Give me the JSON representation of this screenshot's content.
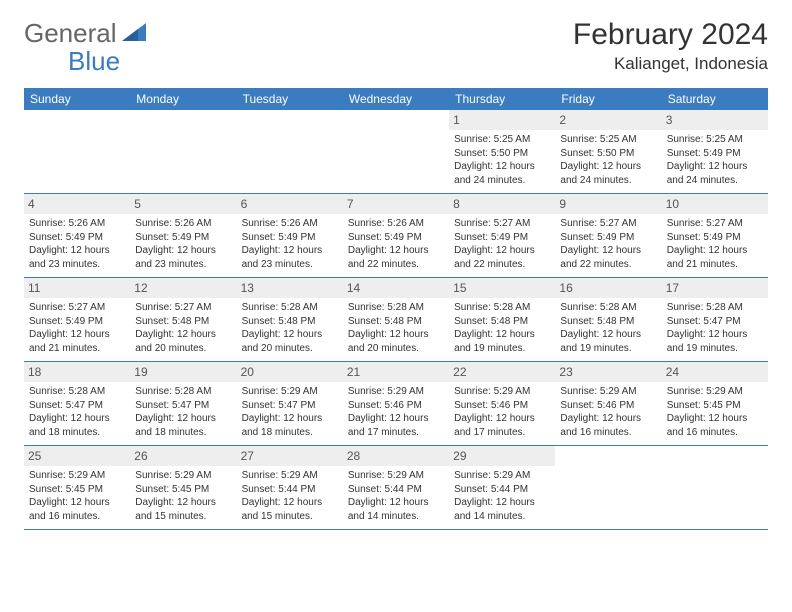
{
  "brand": {
    "part1": "General",
    "part2": "Blue"
  },
  "title": {
    "month": "February 2024",
    "location": "Kalianget, Indonesia"
  },
  "colors": {
    "header_bg": "#3b7bbf",
    "header_text": "#ffffff",
    "daynum_bg": "#eeeeee",
    "border": "#3b7bbf"
  },
  "weekdays": [
    "Sunday",
    "Monday",
    "Tuesday",
    "Wednesday",
    "Thursday",
    "Friday",
    "Saturday"
  ],
  "weeks": [
    [
      {
        "empty": true
      },
      {
        "empty": true
      },
      {
        "empty": true
      },
      {
        "empty": true
      },
      {
        "num": "1",
        "sunrise": "Sunrise: 5:25 AM",
        "sunset": "Sunset: 5:50 PM",
        "daylight": "Daylight: 12 hours and 24 minutes."
      },
      {
        "num": "2",
        "sunrise": "Sunrise: 5:25 AM",
        "sunset": "Sunset: 5:50 PM",
        "daylight": "Daylight: 12 hours and 24 minutes."
      },
      {
        "num": "3",
        "sunrise": "Sunrise: 5:25 AM",
        "sunset": "Sunset: 5:49 PM",
        "daylight": "Daylight: 12 hours and 24 minutes."
      }
    ],
    [
      {
        "num": "4",
        "sunrise": "Sunrise: 5:26 AM",
        "sunset": "Sunset: 5:49 PM",
        "daylight": "Daylight: 12 hours and 23 minutes."
      },
      {
        "num": "5",
        "sunrise": "Sunrise: 5:26 AM",
        "sunset": "Sunset: 5:49 PM",
        "daylight": "Daylight: 12 hours and 23 minutes."
      },
      {
        "num": "6",
        "sunrise": "Sunrise: 5:26 AM",
        "sunset": "Sunset: 5:49 PM",
        "daylight": "Daylight: 12 hours and 23 minutes."
      },
      {
        "num": "7",
        "sunrise": "Sunrise: 5:26 AM",
        "sunset": "Sunset: 5:49 PM",
        "daylight": "Daylight: 12 hours and 22 minutes."
      },
      {
        "num": "8",
        "sunrise": "Sunrise: 5:27 AM",
        "sunset": "Sunset: 5:49 PM",
        "daylight": "Daylight: 12 hours and 22 minutes."
      },
      {
        "num": "9",
        "sunrise": "Sunrise: 5:27 AM",
        "sunset": "Sunset: 5:49 PM",
        "daylight": "Daylight: 12 hours and 22 minutes."
      },
      {
        "num": "10",
        "sunrise": "Sunrise: 5:27 AM",
        "sunset": "Sunset: 5:49 PM",
        "daylight": "Daylight: 12 hours and 21 minutes."
      }
    ],
    [
      {
        "num": "11",
        "sunrise": "Sunrise: 5:27 AM",
        "sunset": "Sunset: 5:49 PM",
        "daylight": "Daylight: 12 hours and 21 minutes."
      },
      {
        "num": "12",
        "sunrise": "Sunrise: 5:27 AM",
        "sunset": "Sunset: 5:48 PM",
        "daylight": "Daylight: 12 hours and 20 minutes."
      },
      {
        "num": "13",
        "sunrise": "Sunrise: 5:28 AM",
        "sunset": "Sunset: 5:48 PM",
        "daylight": "Daylight: 12 hours and 20 minutes."
      },
      {
        "num": "14",
        "sunrise": "Sunrise: 5:28 AM",
        "sunset": "Sunset: 5:48 PM",
        "daylight": "Daylight: 12 hours and 20 minutes."
      },
      {
        "num": "15",
        "sunrise": "Sunrise: 5:28 AM",
        "sunset": "Sunset: 5:48 PM",
        "daylight": "Daylight: 12 hours and 19 minutes."
      },
      {
        "num": "16",
        "sunrise": "Sunrise: 5:28 AM",
        "sunset": "Sunset: 5:48 PM",
        "daylight": "Daylight: 12 hours and 19 minutes."
      },
      {
        "num": "17",
        "sunrise": "Sunrise: 5:28 AM",
        "sunset": "Sunset: 5:47 PM",
        "daylight": "Daylight: 12 hours and 19 minutes."
      }
    ],
    [
      {
        "num": "18",
        "sunrise": "Sunrise: 5:28 AM",
        "sunset": "Sunset: 5:47 PM",
        "daylight": "Daylight: 12 hours and 18 minutes."
      },
      {
        "num": "19",
        "sunrise": "Sunrise: 5:28 AM",
        "sunset": "Sunset: 5:47 PM",
        "daylight": "Daylight: 12 hours and 18 minutes."
      },
      {
        "num": "20",
        "sunrise": "Sunrise: 5:29 AM",
        "sunset": "Sunset: 5:47 PM",
        "daylight": "Daylight: 12 hours and 18 minutes."
      },
      {
        "num": "21",
        "sunrise": "Sunrise: 5:29 AM",
        "sunset": "Sunset: 5:46 PM",
        "daylight": "Daylight: 12 hours and 17 minutes."
      },
      {
        "num": "22",
        "sunrise": "Sunrise: 5:29 AM",
        "sunset": "Sunset: 5:46 PM",
        "daylight": "Daylight: 12 hours and 17 minutes."
      },
      {
        "num": "23",
        "sunrise": "Sunrise: 5:29 AM",
        "sunset": "Sunset: 5:46 PM",
        "daylight": "Daylight: 12 hours and 16 minutes."
      },
      {
        "num": "24",
        "sunrise": "Sunrise: 5:29 AM",
        "sunset": "Sunset: 5:45 PM",
        "daylight": "Daylight: 12 hours and 16 minutes."
      }
    ],
    [
      {
        "num": "25",
        "sunrise": "Sunrise: 5:29 AM",
        "sunset": "Sunset: 5:45 PM",
        "daylight": "Daylight: 12 hours and 16 minutes."
      },
      {
        "num": "26",
        "sunrise": "Sunrise: 5:29 AM",
        "sunset": "Sunset: 5:45 PM",
        "daylight": "Daylight: 12 hours and 15 minutes."
      },
      {
        "num": "27",
        "sunrise": "Sunrise: 5:29 AM",
        "sunset": "Sunset: 5:44 PM",
        "daylight": "Daylight: 12 hours and 15 minutes."
      },
      {
        "num": "28",
        "sunrise": "Sunrise: 5:29 AM",
        "sunset": "Sunset: 5:44 PM",
        "daylight": "Daylight: 12 hours and 14 minutes."
      },
      {
        "num": "29",
        "sunrise": "Sunrise: 5:29 AM",
        "sunset": "Sunset: 5:44 PM",
        "daylight": "Daylight: 12 hours and 14 minutes."
      },
      {
        "empty": true
      },
      {
        "empty": true
      }
    ]
  ]
}
